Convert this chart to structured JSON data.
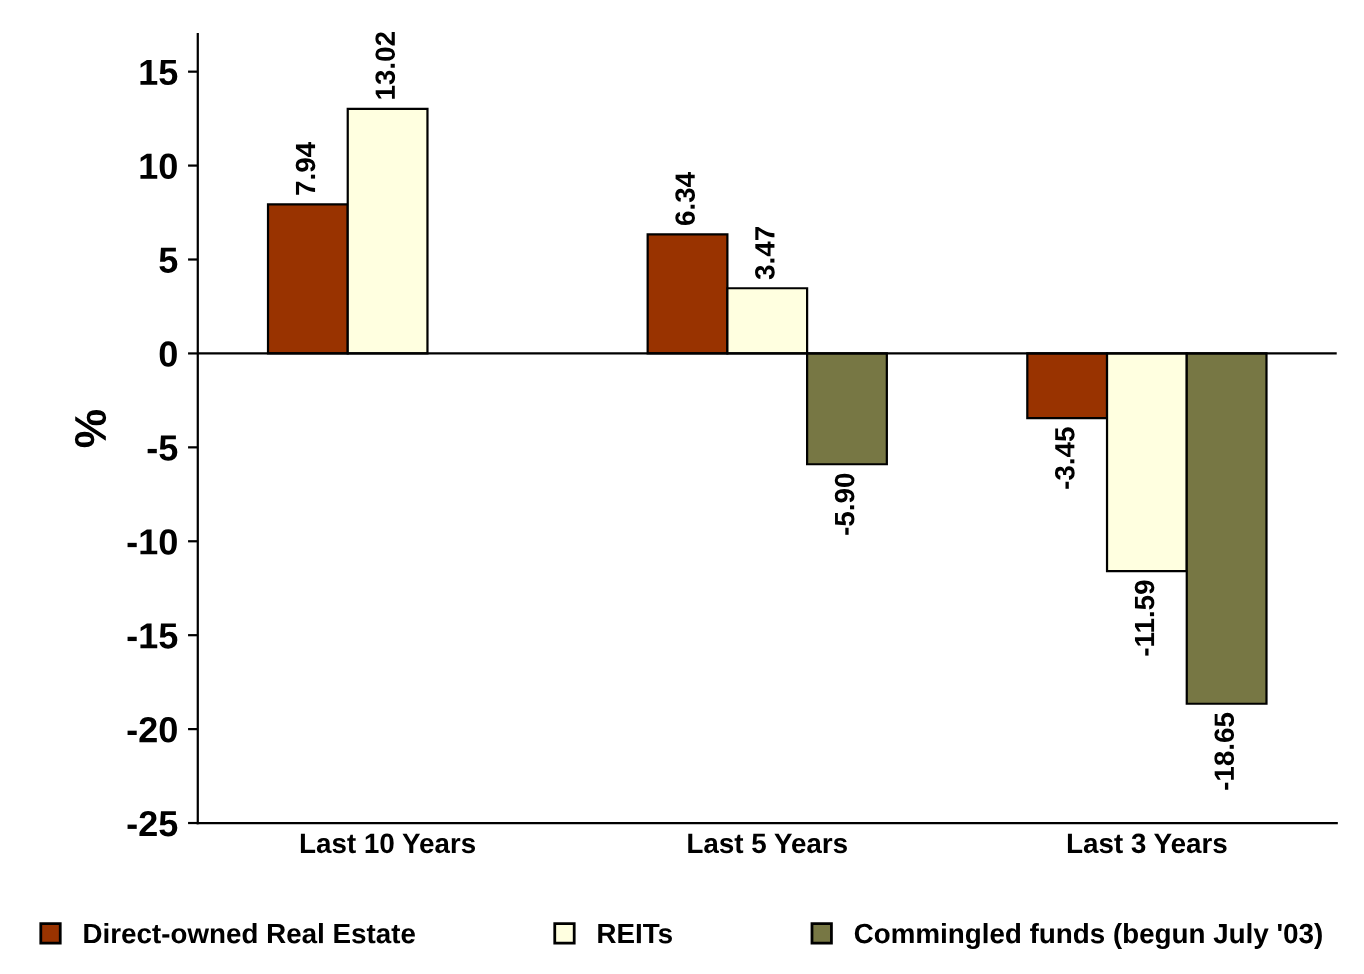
{
  "chart_data": {
    "type": "bar",
    "ylabel": "%",
    "categories": [
      "Last 10 Years",
      "Last 5 Years",
      "Last 3 Years"
    ],
    "series": [
      {
        "name": "Direct-owned Real Estate",
        "color": "#993300",
        "values": [
          7.94,
          6.34,
          -3.45
        ]
      },
      {
        "name": "REITs",
        "color": "#ffffe0",
        "values": [
          13.02,
          3.47,
          -11.59
        ]
      },
      {
        "name": "Commingled funds (begun July '03)",
        "color": "#777744",
        "values": [
          null,
          -5.9,
          -18.65
        ]
      }
    ],
    "value_labels": [
      [
        "7.94",
        "6.34",
        "-3.45"
      ],
      [
        "13.02",
        "3.47",
        "-11.59"
      ],
      [
        null,
        "-5.90",
        "-18.65"
      ]
    ],
    "ylim": [
      -25,
      17
    ],
    "yticks": [
      -25,
      -20,
      -15,
      -10,
      -5,
      0,
      5,
      10,
      15
    ],
    "legend": "bottom"
  }
}
